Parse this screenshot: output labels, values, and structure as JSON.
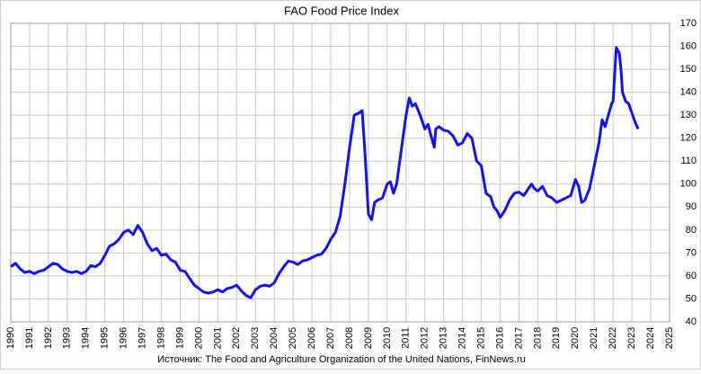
{
  "chart_data": {
    "type": "line",
    "title": "FAO Food Price Index",
    "caption": "Источник: The Food and Agriculture Organization of the United Nations, FinNews.ru",
    "x": [
      1990.0,
      1990.25,
      1990.5,
      1990.75,
      1991.0,
      1991.25,
      1991.5,
      1991.75,
      1992.0,
      1992.25,
      1992.5,
      1992.75,
      1993.0,
      1993.25,
      1993.5,
      1993.75,
      1994.0,
      1994.25,
      1994.5,
      1994.75,
      1995.0,
      1995.25,
      1995.5,
      1995.75,
      1996.0,
      1996.25,
      1996.5,
      1996.75,
      1997.0,
      1997.25,
      1997.5,
      1997.75,
      1998.0,
      1998.25,
      1998.5,
      1998.75,
      1999.0,
      1999.25,
      1999.5,
      1999.75,
      2000.0,
      2000.25,
      2000.5,
      2000.75,
      2001.0,
      2001.25,
      2001.5,
      2001.75,
      2002.0,
      2002.25,
      2002.5,
      2002.75,
      2003.0,
      2003.25,
      2003.5,
      2003.75,
      2004.0,
      2004.25,
      2004.5,
      2004.75,
      2005.0,
      2005.25,
      2005.5,
      2005.75,
      2006.0,
      2006.25,
      2006.5,
      2006.75,
      2007.0,
      2007.25,
      2007.5,
      2007.75,
      2008.0,
      2008.25,
      2008.5,
      2008.67,
      2008.83,
      2009.0,
      2009.17,
      2009.33,
      2009.5,
      2009.75,
      2010.0,
      2010.17,
      2010.33,
      2010.5,
      2010.75,
      2011.0,
      2011.17,
      2011.33,
      2011.5,
      2011.75,
      2012.0,
      2012.17,
      2012.33,
      2012.5,
      2012.58,
      2012.75,
      2013.0,
      2013.25,
      2013.5,
      2013.75,
      2014.0,
      2014.25,
      2014.5,
      2014.75,
      2015.0,
      2015.25,
      2015.5,
      2015.67,
      2015.83,
      2016.0,
      2016.25,
      2016.5,
      2016.75,
      2017.0,
      2017.25,
      2017.5,
      2017.67,
      2017.83,
      2018.0,
      2018.25,
      2018.5,
      2018.75,
      2019.0,
      2019.25,
      2019.5,
      2019.75,
      2020.0,
      2020.17,
      2020.33,
      2020.5,
      2020.75,
      2021.0,
      2021.25,
      2021.42,
      2021.58,
      2021.75,
      2021.92,
      2022.0,
      2022.17,
      2022.33,
      2022.42,
      2022.5,
      2022.67,
      2022.83,
      2023.0,
      2023.17,
      2023.33
    ],
    "series": [
      {
        "name": "FAO Food Price Index",
        "color": "#1010ff",
        "values": [
          64,
          65.5,
          63,
          61.5,
          62,
          61,
          62,
          62.5,
          64,
          65.5,
          65,
          63,
          62,
          61.5,
          62,
          61,
          62,
          64.5,
          64,
          65.5,
          69,
          73,
          74,
          76,
          79,
          80,
          78,
          82,
          79,
          74,
          71,
          72,
          69,
          69.5,
          67,
          66,
          62.5,
          62,
          59,
          56,
          54.5,
          53,
          52.5,
          53,
          54,
          53,
          54.5,
          55,
          56,
          53.5,
          51.5,
          50.5,
          54,
          55.5,
          56,
          55.5,
          57,
          61,
          64,
          66.5,
          66,
          65,
          66.5,
          67,
          68,
          69,
          69.5,
          72,
          76,
          79,
          86,
          100,
          116,
          130,
          131,
          132,
          112,
          87,
          84.5,
          92,
          93,
          94,
          100,
          101,
          96,
          100,
          115,
          130,
          137.5,
          134,
          135,
          130,
          124,
          126,
          121,
          116,
          124,
          125,
          123.5,
          123,
          121,
          117,
          118,
          122,
          120,
          110,
          108,
          96,
          94.5,
          90,
          88.5,
          85.5,
          88.5,
          93,
          96,
          96.5,
          95,
          98,
          100,
          98,
          97,
          99,
          95,
          94,
          92,
          93,
          94,
          95,
          102,
          99,
          92,
          93,
          98,
          108,
          118,
          128,
          125,
          130,
          135,
          136,
          159.5,
          157,
          150,
          140,
          136,
          135,
          131,
          127,
          124
        ]
      }
    ],
    "xlim": [
      1990,
      2025
    ],
    "xticks": [
      1990,
      1991,
      1992,
      1993,
      1994,
      1995,
      1996,
      1997,
      1998,
      1999,
      2000,
      2001,
      2002,
      2003,
      2004,
      2005,
      2006,
      2007,
      2008,
      2009,
      2010,
      2011,
      2012,
      2013,
      2014,
      2015,
      2016,
      2017,
      2018,
      2019,
      2020,
      2021,
      2022,
      2023,
      2024,
      2025
    ],
    "ylim": [
      40,
      170
    ],
    "yticks": [
      40,
      50,
      60,
      70,
      80,
      90,
      100,
      110,
      120,
      130,
      140,
      150,
      160,
      170
    ],
    "grid": true
  }
}
